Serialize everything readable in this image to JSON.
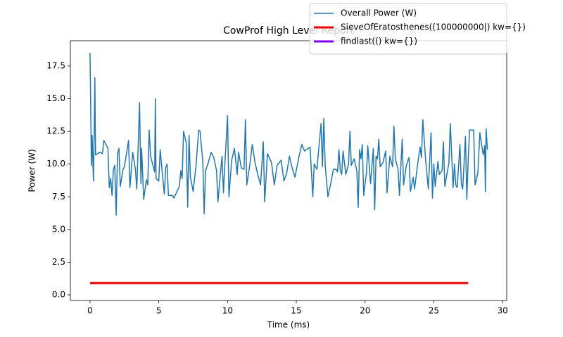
{
  "chart_data": {
    "type": "line",
    "title": "CowProf High Level Report",
    "xlabel": "Time (ms)",
    "ylabel": "Power (W)",
    "xlim": [
      -1.43,
      30.3
    ],
    "ylim": [
      -0.43,
      19.43
    ],
    "xticks": [
      0,
      5,
      10,
      15,
      20,
      25,
      30
    ],
    "yticks": [
      {
        "value": 0,
        "label": "0.0"
      },
      2.5,
      {
        "value": 5,
        "label": "5.0"
      },
      7.5,
      {
        "value": 10,
        "label": "10.0"
      },
      12.5,
      {
        "value": 15,
        "label": "15.0"
      },
      17.5
    ],
    "legend": "upper right",
    "series": [
      {
        "name": "Overall Power (W)",
        "color": "#1f77b4",
        "linewidth": 1.5,
        "x": [
          0.0,
          0.1,
          0.15,
          0.25,
          0.3,
          0.35,
          0.4,
          0.7,
          0.9,
          1.0,
          1.3,
          1.4,
          1.5,
          1.6,
          1.7,
          1.8,
          1.9,
          2.0,
          2.1,
          2.2,
          2.4,
          2.5,
          2.8,
          2.9,
          3.1,
          3.3,
          3.4,
          3.6,
          3.7,
          3.75,
          3.9,
          4.1,
          4.2,
          4.3,
          4.4,
          4.7,
          4.75,
          4.8,
          5.0,
          5.1,
          5.4,
          5.5,
          5.6,
          5.7,
          6.0,
          6.1,
          6.5,
          6.6,
          6.7,
          6.8,
          7.0,
          7.1,
          7.2,
          7.3,
          7.5,
          7.7,
          7.9,
          8.0,
          8.2,
          8.3,
          8.4,
          8.6,
          8.8,
          9.0,
          9.2,
          9.3,
          9.5,
          9.6,
          9.7,
          9.8,
          10.0,
          10.1,
          10.3,
          10.5,
          10.7,
          10.8,
          11.0,
          11.2,
          11.3,
          11.4,
          11.6,
          11.8,
          12.0,
          12.2,
          12.4,
          12.6,
          12.7,
          12.9,
          13.2,
          13.4,
          13.6,
          13.9,
          14.1,
          14.3,
          14.5,
          14.7,
          14.9,
          15.2,
          15.4,
          15.6,
          16.0,
          16.2,
          16.3,
          16.5,
          16.8,
          16.9,
          17.0,
          17.1,
          17.3,
          17.5,
          17.7,
          17.9,
          18.0,
          18.1,
          18.2,
          18.3,
          18.4,
          18.6,
          18.8,
          18.9,
          19.0,
          19.2,
          19.4,
          19.5,
          19.6,
          19.7,
          19.8,
          19.9,
          20.1,
          20.2,
          20.4,
          20.6,
          20.7,
          20.8,
          20.9,
          21.0,
          21.1,
          21.3,
          21.5,
          21.6,
          21.8,
          22.0,
          22.1,
          22.2,
          22.4,
          22.5,
          22.7,
          22.8,
          23.0,
          23.2,
          23.3,
          23.5,
          23.6,
          23.8,
          24.0,
          24.1,
          24.2,
          24.4,
          24.6,
          24.8,
          24.9,
          25.0,
          25.1,
          25.3,
          25.4,
          25.6,
          25.7,
          25.8,
          26.1,
          26.2,
          26.4,
          26.5,
          26.6,
          26.7,
          26.9,
          27.0,
          27.1,
          27.3,
          27.4,
          27.5,
          27.6,
          27.9,
          28.0,
          28.2,
          28.35,
          28.5,
          28.6,
          28.7,
          28.75,
          28.8,
          28.9
        ],
        "values": [
          18.5,
          9.9,
          12.2,
          8.7,
          12.3,
          16.6,
          10.7,
          10.9,
          10.8,
          11.8,
          11.2,
          8.2,
          8.9,
          7.6,
          9.6,
          9.9,
          6.1,
          10.8,
          11.2,
          8.3,
          9.6,
          9.8,
          11.8,
          8.2,
          10.9,
          9.6,
          8.1,
          14.7,
          8.5,
          11.2,
          7.3,
          8.8,
          8.4,
          12.6,
          10.6,
          9.4,
          15.0,
          8.9,
          8.7,
          11.1,
          7.7,
          9.7,
          10.0,
          7.6,
          7.6,
          7.4,
          8.3,
          9.5,
          8.9,
          12.5,
          11.6,
          6.7,
          12.2,
          9.0,
          7.9,
          9.8,
          12.6,
          12.5,
          10.2,
          6.2,
          9.5,
          10.1,
          10.9,
          10.5,
          9.5,
          7.1,
          9.5,
          10.6,
          7.8,
          9.9,
          13.7,
          7.5,
          10.3,
          11.2,
          9.2,
          10.9,
          9.7,
          9.6,
          13.4,
          8.4,
          9.8,
          11.5,
          10.1,
          9.2,
          8.4,
          11.7,
          7.1,
          10.8,
          10.1,
          8.4,
          9.9,
          10.3,
          8.7,
          9.3,
          10.6,
          9.7,
          9.0,
          10.6,
          11.5,
          11.0,
          11.3,
          7.5,
          10.0,
          9.6,
          13.1,
          9.8,
          13.5,
          9.9,
          7.5,
          8.5,
          9.6,
          9.6,
          9.4,
          11.1,
          9.5,
          9.2,
          11.0,
          9.2,
          10.0,
          12.5,
          9.9,
          10.4,
          9.5,
          6.7,
          11.1,
          10.4,
          11.5,
          7.6,
          9.3,
          11.4,
          8.5,
          11.2,
          6.5,
          10.6,
          10.4,
          11.9,
          9.8,
          10.1,
          11.0,
          7.8,
          10.6,
          9.8,
          12.9,
          10.4,
          9.6,
          7.6,
          11.9,
          8.4,
          9.9,
          10.5,
          7.9,
          9.0,
          8.1,
          9.8,
          11.3,
          10.5,
          13.4,
          10.4,
          8.1,
          12.4,
          7.4,
          10.0,
          8.3,
          10.2,
          9.2,
          9.5,
          11.7,
          8.3,
          10.1,
          13.1,
          8.2,
          10.0,
          8.4,
          8.2,
          11.5,
          8.5,
          8.1,
          12.1,
          7.3,
          10.3,
          12.6,
          12.6,
          8.4,
          9.3,
          12.4,
          11.3,
          10.7,
          11.4,
          7.9,
          12.7,
          11.1
        ]
      },
      {
        "name": "SieveOfEratosthenes((100000000|) kw={})",
        "color": "#ee0000",
        "linewidth": 3,
        "x": [
          0,
          27.5
        ],
        "values": [
          0.9,
          0.9
        ]
      },
      {
        "name": "findlast(() kw={})",
        "color": "#7f00ee",
        "linewidth": 3,
        "x": [],
        "values": []
      }
    ]
  }
}
